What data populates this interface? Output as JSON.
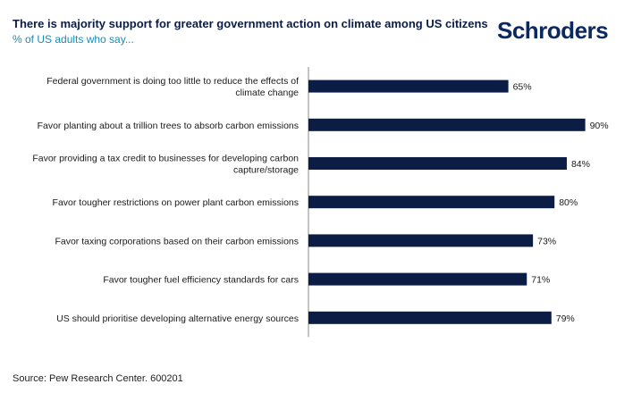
{
  "header": {
    "title": "There is majority support for greater government action on climate among US citizens",
    "subtitle": "% of US adults who say...",
    "logo": "Schroders"
  },
  "footer": {
    "source": "Source: Pew Research Center. 600201"
  },
  "colors": {
    "bar": "#0b1d45",
    "axis": "#8a8a8a",
    "title": "#0b1d45",
    "subtitle": "#1a8bb3"
  },
  "chart_data": {
    "type": "bar",
    "orientation": "horizontal",
    "title": "There is majority support for greater government action on climate among US citizens",
    "subtitle": "% of US adults who say...",
    "categories": [
      [
        "Federal government is doing too little to reduce the effects of",
        "climate change"
      ],
      [
        "Favor planting about a trillion trees to absorb carbon emissions"
      ],
      [
        "Favor providing a tax credit to businesses for developing carbon",
        "capture/storage"
      ],
      [
        "Favor tougher restrictions on power plant carbon emissions"
      ],
      [
        "Favor taxing corporations based on their carbon emissions"
      ],
      [
        "Favor tougher fuel efficiency standards for cars"
      ],
      [
        "US should prioritise developing alternative energy sources"
      ]
    ],
    "values": [
      65,
      90,
      84,
      80,
      73,
      71,
      79
    ],
    "value_labels": [
      "65%",
      "90%",
      "84%",
      "80%",
      "73%",
      "71%",
      "79%"
    ],
    "xlim": [
      0,
      100
    ],
    "grid": false,
    "legend": "none"
  }
}
